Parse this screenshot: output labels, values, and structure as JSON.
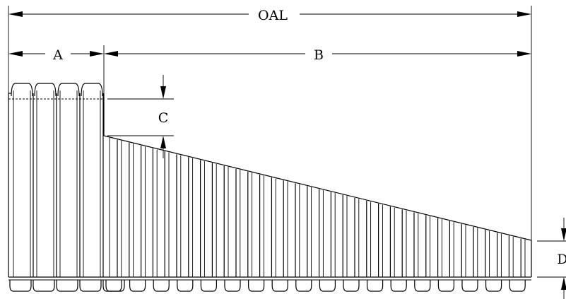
{
  "dimensions": {
    "oal": "OAL",
    "a": "A",
    "b": "B",
    "c": "C",
    "d": "D"
  }
}
